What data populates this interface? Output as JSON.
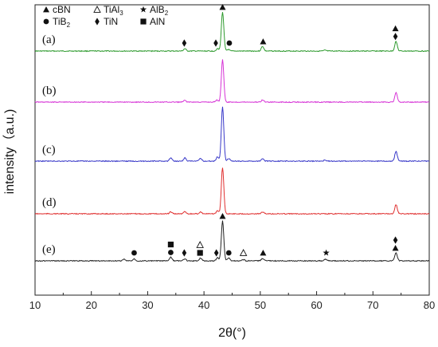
{
  "chart_data": {
    "type": "line",
    "xlabel": "2θ(°)",
    "ylabel": "intensity（a.u.)",
    "xlim": [
      10,
      80
    ],
    "x_ticks": [
      10,
      20,
      30,
      40,
      50,
      60,
      70,
      80
    ],
    "grid": false,
    "legend_position": "top-left",
    "legend": [
      {
        "symbol": "triangle-filled",
        "label": "cBN"
      },
      {
        "symbol": "triangle-open",
        "label": "TiAl",
        "sub": "3"
      },
      {
        "symbol": "star",
        "label": "AlB",
        "sub": "2"
      },
      {
        "symbol": "circle-filled",
        "label": "TiB",
        "sub": "2"
      },
      {
        "symbol": "diamond-filled",
        "label": "TiN"
      },
      {
        "symbol": "square-filled",
        "label": "AlN"
      }
    ],
    "series": [
      {
        "label": "(a)",
        "color": "#2e9a2e",
        "peaks": [
          {
            "x": 36.6,
            "h": 0.06
          },
          {
            "x": 42.4,
            "h": 0.06
          },
          {
            "x": 43.3,
            "h": 1.0
          },
          {
            "x": 44.3,
            "h": 0.04
          },
          {
            "x": 50.4,
            "h": 0.12
          },
          {
            "x": 61.5,
            "h": 0.02
          },
          {
            "x": 74.1,
            "h": 0.25
          }
        ],
        "markers": [
          {
            "x": 36.5,
            "symbols": [
              "diamond-filled"
            ]
          },
          {
            "x": 42.1,
            "symbols": [
              "diamond-filled"
            ]
          },
          {
            "x": 43.3,
            "symbols": [
              "triangle-filled"
            ]
          },
          {
            "x": 44.5,
            "symbols": [
              "circle-filled"
            ]
          },
          {
            "x": 50.5,
            "symbols": [
              "triangle-filled"
            ]
          },
          {
            "x": 74.0,
            "symbols": [
              "diamond-filled",
              "triangle-filled"
            ]
          }
        ]
      },
      {
        "label": "(b)",
        "color": "#d633d6",
        "peaks": [
          {
            "x": 36.6,
            "h": 0.04
          },
          {
            "x": 42.3,
            "h": 0.05
          },
          {
            "x": 43.3,
            "h": 1.0
          },
          {
            "x": 50.4,
            "h": 0.05
          },
          {
            "x": 74.1,
            "h": 0.22
          }
        ],
        "markers": []
      },
      {
        "label": "(c)",
        "color": "#3838c8",
        "peaks": [
          {
            "x": 34.1,
            "h": 0.06
          },
          {
            "x": 36.6,
            "h": 0.06
          },
          {
            "x": 39.4,
            "h": 0.05
          },
          {
            "x": 42.4,
            "h": 0.08
          },
          {
            "x": 43.3,
            "h": 1.0
          },
          {
            "x": 44.4,
            "h": 0.05
          },
          {
            "x": 50.4,
            "h": 0.05
          },
          {
            "x": 61.5,
            "h": 0.02
          },
          {
            "x": 74.1,
            "h": 0.18
          }
        ],
        "markers": []
      },
      {
        "label": "(d)",
        "color": "#e03030",
        "peaks": [
          {
            "x": 34.1,
            "h": 0.04
          },
          {
            "x": 36.6,
            "h": 0.05
          },
          {
            "x": 39.4,
            "h": 0.04
          },
          {
            "x": 42.4,
            "h": 0.06
          },
          {
            "x": 43.3,
            "h": 1.0
          },
          {
            "x": 50.4,
            "h": 0.04
          },
          {
            "x": 74.1,
            "h": 0.2
          }
        ],
        "markers": []
      },
      {
        "label": "(e)",
        "color": "#222222",
        "peaks": [
          {
            "x": 25.8,
            "h": 0.04
          },
          {
            "x": 27.6,
            "h": 0.05
          },
          {
            "x": 34.1,
            "h": 0.09
          },
          {
            "x": 36.6,
            "h": 0.05
          },
          {
            "x": 39.4,
            "h": 0.07
          },
          {
            "x": 42.4,
            "h": 0.08
          },
          {
            "x": 43.3,
            "h": 1.0
          },
          {
            "x": 44.4,
            "h": 0.08
          },
          {
            "x": 47.0,
            "h": 0.03
          },
          {
            "x": 50.4,
            "h": 0.06
          },
          {
            "x": 61.6,
            "h": 0.04
          },
          {
            "x": 74.1,
            "h": 0.2
          }
        ],
        "markers": [
          {
            "x": 27.6,
            "symbols": [
              "circle-filled"
            ]
          },
          {
            "x": 34.1,
            "symbols": [
              "circle-filled",
              "square-filled"
            ]
          },
          {
            "x": 36.5,
            "symbols": [
              "diamond-filled"
            ]
          },
          {
            "x": 39.3,
            "symbols": [
              "square-filled",
              "triangle-open"
            ]
          },
          {
            "x": 42.2,
            "symbols": [
              "diamond-filled"
            ]
          },
          {
            "x": 43.3,
            "symbols": [
              "triangle-filled"
            ]
          },
          {
            "x": 44.4,
            "symbols": [
              "circle-filled"
            ]
          },
          {
            "x": 47.0,
            "symbols": [
              "triangle-open"
            ]
          },
          {
            "x": 50.5,
            "symbols": [
              "triangle-filled"
            ]
          },
          {
            "x": 61.7,
            "symbols": [
              "star"
            ]
          },
          {
            "x": 74.0,
            "symbols": [
              "triangle-filled",
              "diamond-filled"
            ]
          }
        ]
      }
    ]
  }
}
